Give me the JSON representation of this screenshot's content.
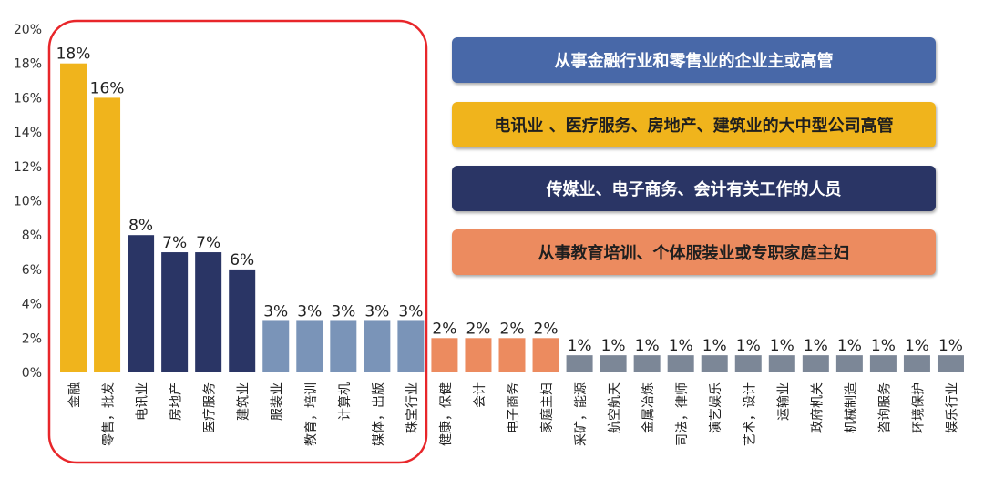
{
  "chart_data": {
    "type": "bar",
    "ylim": [
      0,
      20
    ],
    "ytick_labels": [
      "0%",
      "2%",
      "4%",
      "6%",
      "8%",
      "10%",
      "12%",
      "14%",
      "16%",
      "18%",
      "20%"
    ],
    "categories": [
      "金融",
      "零售，批发",
      "电讯业",
      "房地产",
      "医疗服务",
      "建筑业",
      "服装业",
      "教育，培训",
      "计算机",
      "媒体，出版",
      "珠宝行业",
      "健康，保健",
      "会计",
      "电子商务",
      "家庭主妇",
      "采矿，能源",
      "航空航天",
      "金属冶炼",
      "司法，律师",
      "演艺娱乐",
      "艺术，设计",
      "运输业",
      "政府机关",
      "机械制造",
      "咨询服务",
      "环境保护",
      "娱乐行业"
    ],
    "values": [
      18,
      16,
      8,
      7,
      7,
      6,
      3,
      3,
      3,
      3,
      3,
      2,
      2,
      2,
      2,
      1,
      1,
      1,
      1,
      1,
      1,
      1,
      1,
      1,
      1,
      1,
      1
    ],
    "value_labels": [
      "18%",
      "16%",
      "8%",
      "7%",
      "7%",
      "6%",
      "3%",
      "3%",
      "3%",
      "3%",
      "3%",
      "2%",
      "2%",
      "2%",
      "2%",
      "1%",
      "1%",
      "1%",
      "1%",
      "1%",
      "1%",
      "1%",
      "1%",
      "1%",
      "1%",
      "1%",
      "1%"
    ],
    "groups": [
      0,
      0,
      1,
      1,
      1,
      1,
      2,
      2,
      2,
      2,
      2,
      3,
      3,
      3,
      3,
      4,
      4,
      4,
      4,
      4,
      4,
      4,
      4,
      4,
      4,
      4,
      4
    ],
    "group_colors": [
      "#F0B41C",
      "#2A3565",
      "#7A94B8",
      "#EC8B5F",
      "#7C8797"
    ],
    "highlight_color": "#E8262A",
    "grid": false
  },
  "legend": {
    "items": [
      {
        "label": "从事金融行业和零售业的企业主或高管",
        "bg": "#4868A8",
        "fg": "#FFFFFF"
      },
      {
        "label": "电讯业 、医疗服务、房地产、建筑业的大中型公司高管",
        "bg": "#F0B41C",
        "fg": "#1F1F1F"
      },
      {
        "label": "传媒业、电子商务、会计有关工作的人员",
        "bg": "#2A3565",
        "fg": "#FFFFFF"
      },
      {
        "label": "从事教育培训、个体服装业或专职家庭主妇",
        "bg": "#EC8B5F",
        "fg": "#1F1F1F"
      }
    ]
  }
}
